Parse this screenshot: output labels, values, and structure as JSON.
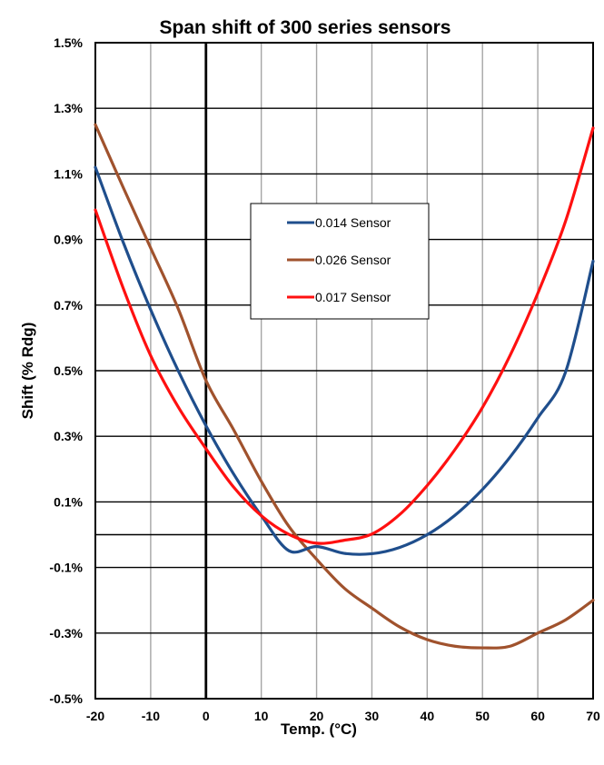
{
  "chart_data": {
    "type": "line",
    "title": "Span shift of 300 series sensors",
    "xlabel": "Temp. (°C)",
    "ylabel": "Shift (% Rdg)",
    "xlim": [
      -20,
      70
    ],
    "ylim": [
      -0.5,
      1.5
    ],
    "x_ticks": [
      -20,
      -10,
      0,
      10,
      20,
      30,
      40,
      50,
      60,
      70
    ],
    "x_tick_labels": [
      "-20",
      "-10",
      "0",
      "10",
      "20",
      "30",
      "40",
      "50",
      "60",
      "70"
    ],
    "y_ticks": [
      -0.5,
      -0.3,
      -0.1,
      0.1,
      0.3,
      0.5,
      0.7,
      0.9,
      1.1,
      1.3,
      1.5
    ],
    "y_tick_labels": [
      "-0.5%",
      "-0.3%",
      "-0.1%",
      "0.1%",
      "0.3%",
      "0.5%",
      "0.7%",
      "0.9%",
      "1.1%",
      "1.3%",
      "1.5%"
    ],
    "grid": true,
    "legend_position": "upper-center",
    "series": [
      {
        "name": "0.014 Sensor",
        "color": "#1f4e8c",
        "x": [
          -20,
          -15,
          -10,
          -5,
          0,
          5,
          10,
          15,
          20,
          25,
          30,
          35,
          40,
          45,
          50,
          55,
          60,
          65,
          70
        ],
        "y": [
          1.12,
          0.893,
          0.686,
          0.499,
          0.332,
          0.185,
          0.058,
          -0.049,
          -0.036,
          -0.057,
          -0.058,
          -0.039,
          -0.0,
          0.059,
          0.138,
          0.237,
          0.356,
          0.495,
          0.834
        ]
      },
      {
        "name": "0.026 Sensor",
        "color": "#a0522d",
        "x": [
          -20,
          -15,
          -10,
          -5,
          0,
          5,
          10,
          15,
          20,
          25,
          30,
          35,
          40,
          45,
          50,
          55,
          60,
          65,
          70
        ],
        "y": [
          1.25,
          1.06,
          0.874,
          0.688,
          0.47,
          0.32,
          0.163,
          0.025,
          -0.075,
          -0.163,
          -0.224,
          -0.281,
          -0.32,
          -0.34,
          -0.345,
          -0.34,
          -0.3,
          -0.26,
          -0.2
        ]
      },
      {
        "name": "0.017 Sensor",
        "color": "#ff1010",
        "x": [
          -20,
          -15,
          -10,
          -5,
          0,
          5,
          10,
          15,
          20,
          25,
          30,
          35,
          40,
          45,
          50,
          55,
          60,
          65,
          70
        ],
        "y": [
          0.99,
          0.753,
          0.546,
          0.389,
          0.262,
          0.145,
          0.058,
          0.001,
          -0.026,
          -0.017,
          0.002,
          0.061,
          0.15,
          0.259,
          0.388,
          0.547,
          0.736,
          0.955,
          1.24
        ]
      }
    ]
  }
}
